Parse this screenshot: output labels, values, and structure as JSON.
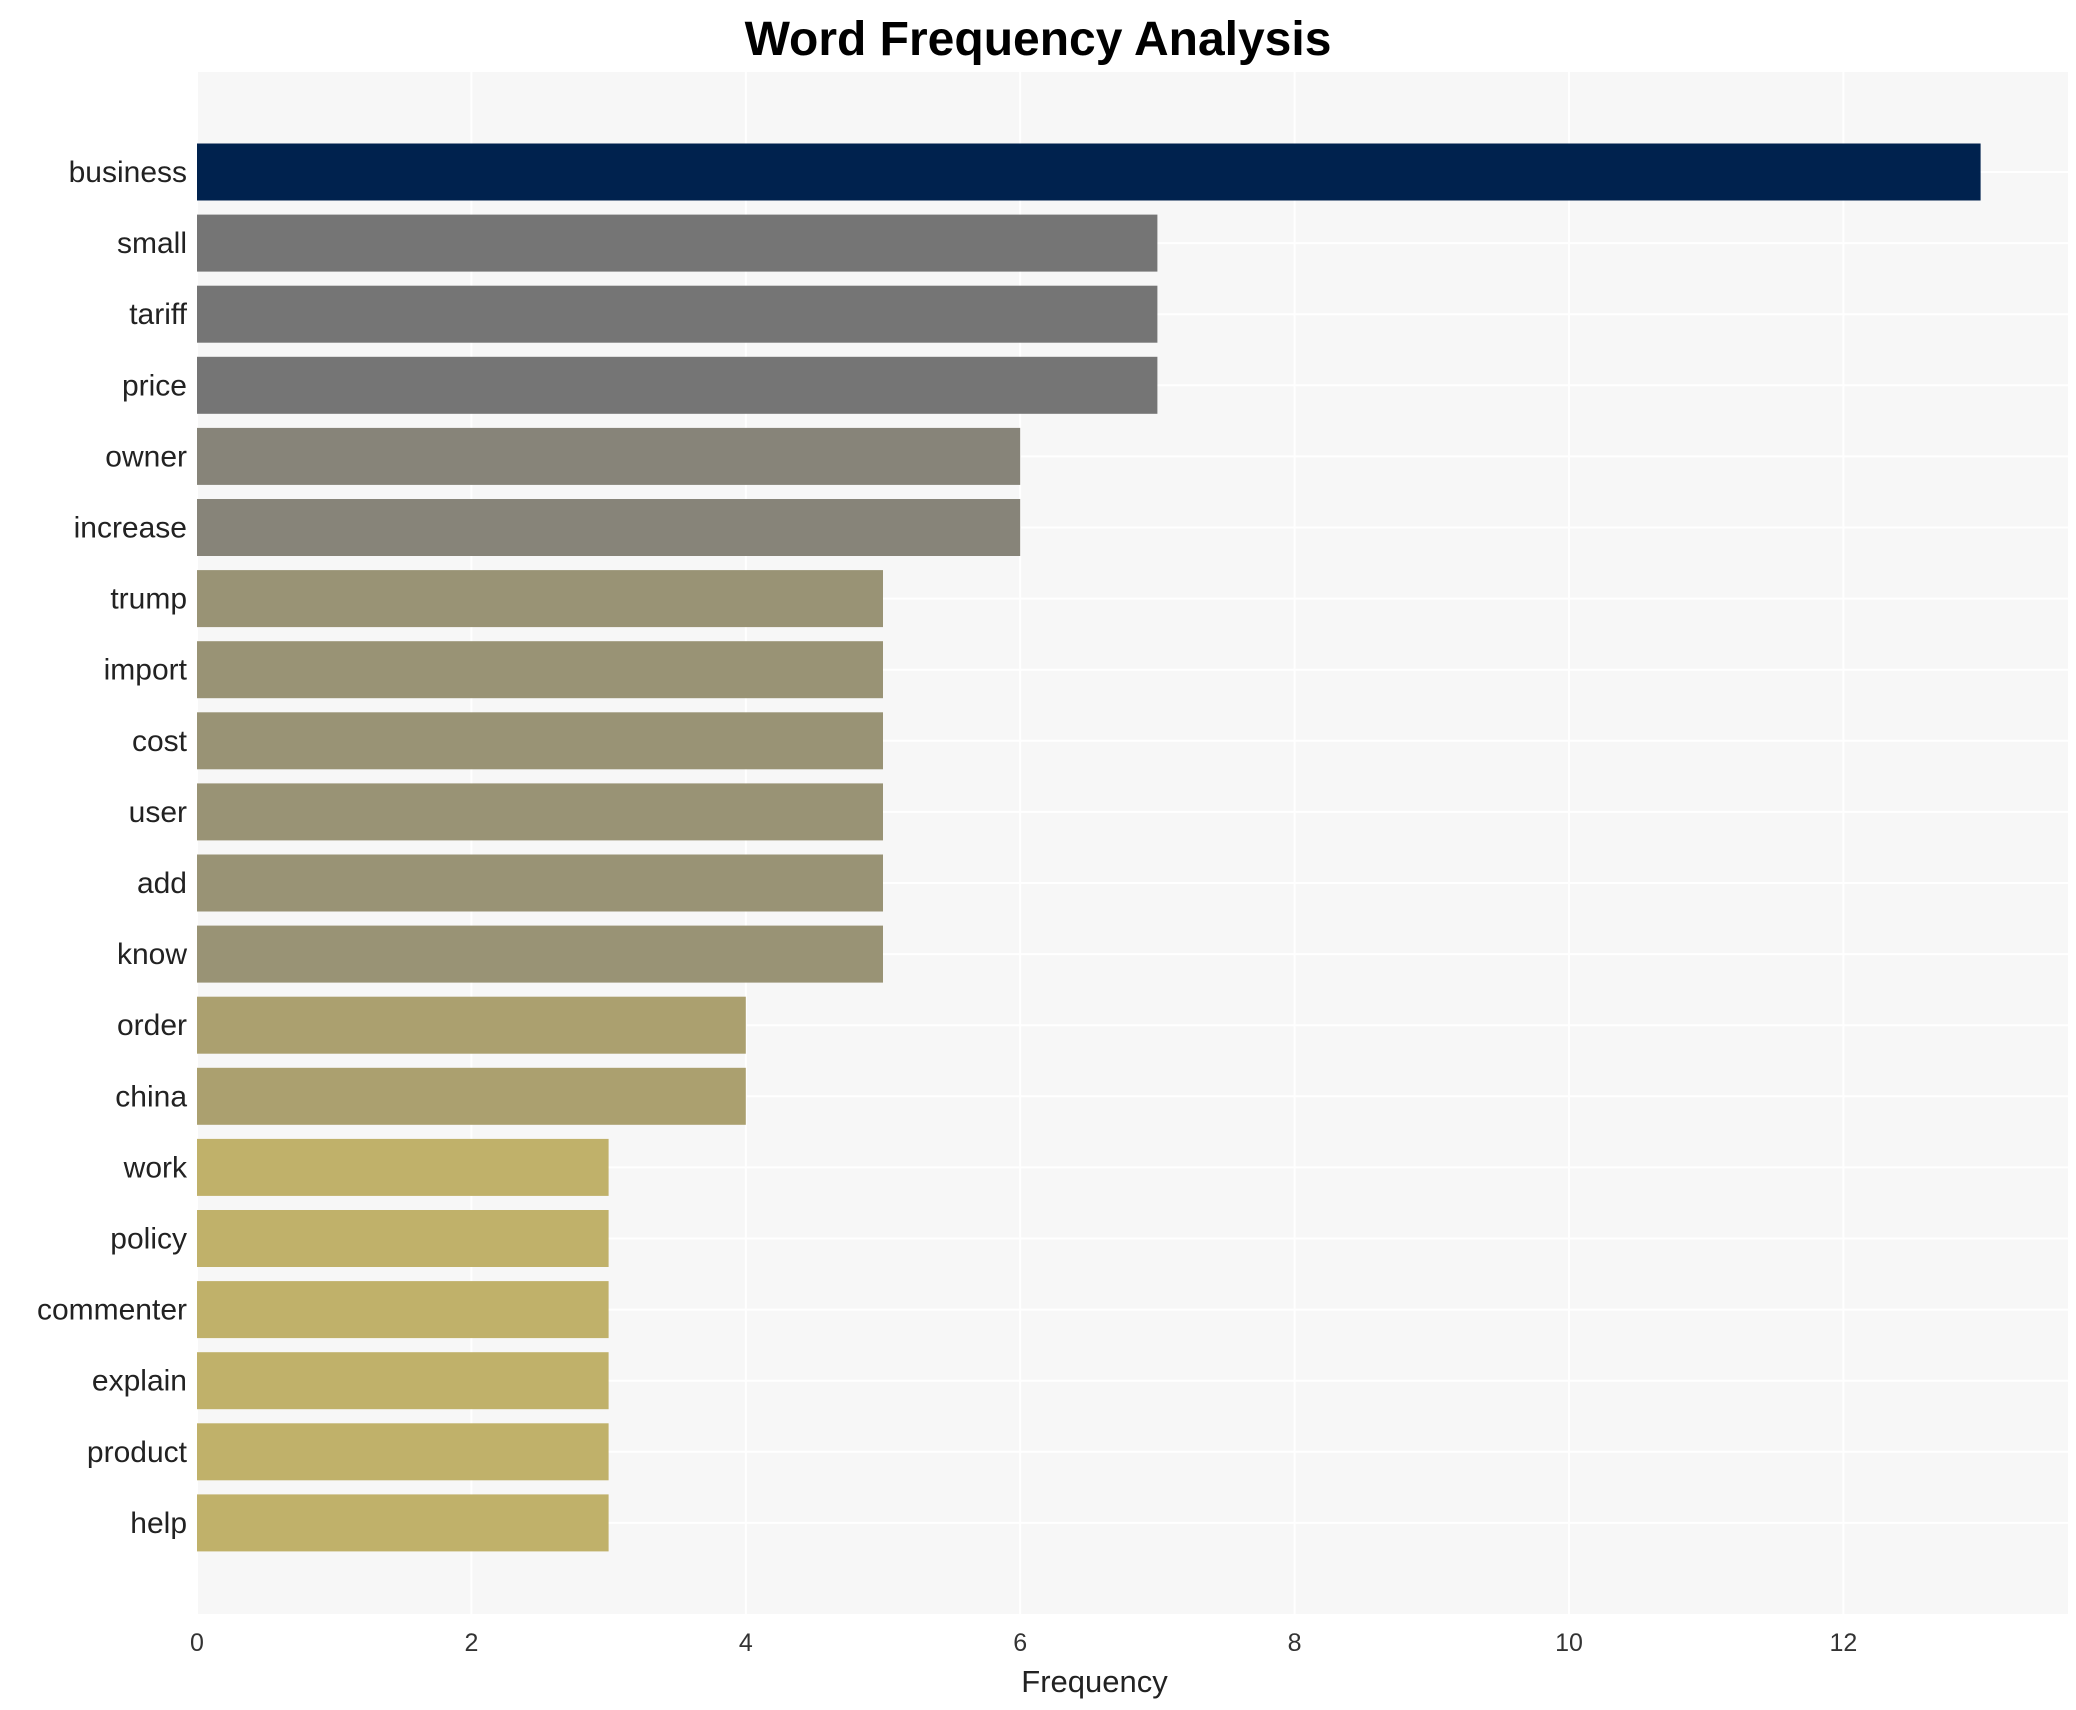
{
  "chart_data": {
    "type": "bar",
    "orientation": "horizontal",
    "title": "Word Frequency Analysis",
    "xlabel": "Frequency",
    "ylabel": "",
    "xlim": [
      0,
      13.65
    ],
    "xticks": [
      0,
      2,
      4,
      6,
      8,
      10,
      12
    ],
    "grid": true,
    "categories": [
      "business",
      "small",
      "tariff",
      "price",
      "owner",
      "increase",
      "trump",
      "import",
      "cost",
      "user",
      "add",
      "know",
      "order",
      "china",
      "work",
      "policy",
      "commenter",
      "explain",
      "product",
      "help"
    ],
    "values": [
      13,
      7,
      7,
      7,
      6,
      6,
      5,
      5,
      5,
      5,
      5,
      5,
      4,
      4,
      3,
      3,
      3,
      3,
      3,
      3
    ],
    "colors": {
      "13": "#00224e",
      "7": "#757575",
      "6": "#878479",
      "5": "#999375",
      "4": "#aba06f",
      "3": "#c0b16a"
    },
    "plot_background": "#f7f7f7"
  }
}
